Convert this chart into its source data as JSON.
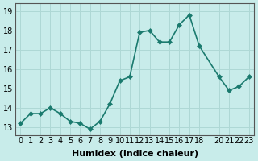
{
  "x": [
    0,
    1,
    2,
    3,
    4,
    5,
    6,
    7,
    8,
    9,
    10,
    11,
    12,
    13,
    14,
    15,
    16,
    17,
    18,
    20,
    21,
    22,
    23
  ],
  "y": [
    13.2,
    13.7,
    13.7,
    14.0,
    13.7,
    13.3,
    13.2,
    12.9,
    13.3,
    14.2,
    15.4,
    15.6,
    17.9,
    18.0,
    17.4,
    17.4,
    18.3,
    18.8,
    17.2,
    15.6,
    14.9,
    15.1,
    15.6
  ],
  "line_color": "#1a7a6e",
  "marker_color": "#1a7a6e",
  "bg_color": "#c8ecea",
  "grid_color": "#aed8d5",
  "xlabel": "Humidex (Indice chaleur)",
  "xlabel_fontsize": 8,
  "xticks": [
    0,
    1,
    2,
    3,
    4,
    5,
    6,
    7,
    8,
    9,
    10,
    11,
    12,
    13,
    14,
    15,
    16,
    17,
    18,
    20,
    21,
    22,
    23
  ],
  "xtick_labels": [
    "0",
    "1",
    "2",
    "3",
    "4",
    "5",
    "6",
    "7",
    "8",
    "9",
    "10",
    "11",
    "12",
    "13",
    "14",
    "15",
    "16",
    "17",
    "18",
    "20",
    "21",
    "22",
    "23"
  ],
  "yticks": [
    13,
    14,
    15,
    16,
    17,
    18,
    19
  ],
  "ylim": [
    12.6,
    19.4
  ],
  "xlim": [
    -0.5,
    23.5
  ],
  "tick_fontsize": 7,
  "linewidth": 1.2,
  "markersize": 3
}
